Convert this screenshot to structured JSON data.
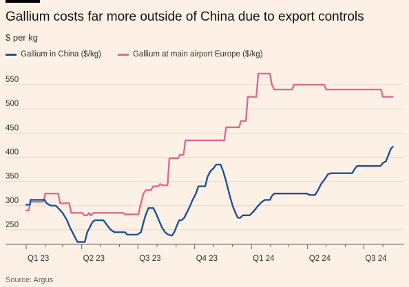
{
  "header": {
    "title": "Gallium costs far more outside of China due to export controls",
    "subtitle": "$ per kg"
  },
  "legend": [
    {
      "label": "Gallium in China ($/kg)",
      "color": "#1f4e96"
    },
    {
      "label": "Gallium at main airport Europe ($/kg)",
      "color": "#e0698a"
    }
  ],
  "footer": {
    "source": "Source: Argus"
  },
  "chart_data": {
    "type": "line",
    "title": "Gallium costs far more outside of China due to export controls",
    "ylabel": "$ per kg",
    "xlabel": "",
    "x_tick_labels": [
      "Q1 23",
      "Q2 23",
      "Q3 23",
      "Q4 23",
      "Q1 24",
      "Q2 24",
      "Q3 24"
    ],
    "y_ticks": [
      250,
      300,
      350,
      400,
      450,
      500,
      550
    ],
    "xlim": [
      "2023-01-01",
      "2024-08-31"
    ],
    "ylim": [
      220,
      590
    ],
    "grid": true,
    "legend_position": "top-left",
    "series": [
      {
        "name": "Gallium in China ($/kg)",
        "color": "#1f4e96",
        "points": [
          [
            "2023-01-01",
            302
          ],
          [
            "2023-01-07",
            302
          ],
          [
            "2023-01-08",
            312
          ],
          [
            "2023-01-31",
            312
          ],
          [
            "2023-02-03",
            305
          ],
          [
            "2023-02-10",
            300
          ],
          [
            "2023-02-18",
            300
          ],
          [
            "2023-02-22",
            295
          ],
          [
            "2023-03-01",
            285
          ],
          [
            "2023-03-08",
            270
          ],
          [
            "2023-03-13",
            255
          ],
          [
            "2023-03-19",
            240
          ],
          [
            "2023-03-25",
            225
          ],
          [
            "2023-04-06",
            225
          ],
          [
            "2023-04-10",
            245
          ],
          [
            "2023-04-14",
            255
          ],
          [
            "2023-04-18",
            265
          ],
          [
            "2023-04-22",
            270
          ],
          [
            "2023-05-06",
            270
          ],
          [
            "2023-05-12",
            260
          ],
          [
            "2023-05-18",
            250
          ],
          [
            "2023-05-24",
            245
          ],
          [
            "2023-06-10",
            245
          ],
          [
            "2023-06-14",
            240
          ],
          [
            "2023-06-30",
            240
          ],
          [
            "2023-07-06",
            245
          ],
          [
            "2023-07-10",
            265
          ],
          [
            "2023-07-14",
            282
          ],
          [
            "2023-07-18",
            295
          ],
          [
            "2023-07-26",
            295
          ],
          [
            "2023-07-30",
            285
          ],
          [
            "2023-08-04",
            270
          ],
          [
            "2023-08-09",
            255
          ],
          [
            "2023-08-14",
            245
          ],
          [
            "2023-08-19",
            240
          ],
          [
            "2023-08-25",
            238
          ],
          [
            "2023-08-29",
            245
          ],
          [
            "2023-09-02",
            258
          ],
          [
            "2023-09-06",
            270
          ],
          [
            "2023-09-10",
            270
          ],
          [
            "2023-09-14",
            275
          ],
          [
            "2023-09-18",
            285
          ],
          [
            "2023-09-22",
            295
          ],
          [
            "2023-09-27",
            310
          ],
          [
            "2023-10-03",
            325
          ],
          [
            "2023-10-07",
            340
          ],
          [
            "2023-10-18",
            340
          ],
          [
            "2023-10-22",
            360
          ],
          [
            "2023-10-27",
            372
          ],
          [
            "2023-11-01",
            378
          ],
          [
            "2023-11-05",
            385
          ],
          [
            "2023-11-12",
            385
          ],
          [
            "2023-11-16",
            372
          ],
          [
            "2023-11-20",
            355
          ],
          [
            "2023-11-24",
            335
          ],
          [
            "2023-11-28",
            315
          ],
          [
            "2023-12-02",
            298
          ],
          [
            "2023-12-06",
            285
          ],
          [
            "2023-12-10",
            275
          ],
          [
            "2023-12-14",
            275
          ],
          [
            "2023-12-18",
            280
          ],
          [
            "2023-12-29",
            280
          ],
          [
            "2024-01-02",
            285
          ],
          [
            "2024-01-07",
            292
          ],
          [
            "2024-01-12",
            300
          ],
          [
            "2024-01-17",
            307
          ],
          [
            "2024-01-23",
            312
          ],
          [
            "2024-01-31",
            312
          ],
          [
            "2024-02-03",
            320
          ],
          [
            "2024-02-07",
            325
          ],
          [
            "2024-03-31",
            325
          ],
          [
            "2024-04-04",
            322
          ],
          [
            "2024-04-13",
            322
          ],
          [
            "2024-04-17",
            330
          ],
          [
            "2024-04-23",
            345
          ],
          [
            "2024-04-29",
            355
          ],
          [
            "2024-05-04",
            365
          ],
          [
            "2024-05-09",
            367
          ],
          [
            "2024-06-12",
            367
          ],
          [
            "2024-06-16",
            375
          ],
          [
            "2024-06-20",
            382
          ],
          [
            "2024-07-28",
            382
          ],
          [
            "2024-08-01",
            388
          ],
          [
            "2024-08-06",
            392
          ],
          [
            "2024-08-10",
            405
          ],
          [
            "2024-08-14",
            418
          ],
          [
            "2024-08-17",
            422
          ]
        ]
      },
      {
        "name": "Gallium at main airport Europe ($/kg)",
        "color": "#e0698a",
        "points": [
          [
            "2023-01-01",
            290
          ],
          [
            "2023-01-05",
            290
          ],
          [
            "2023-01-08",
            308
          ],
          [
            "2023-01-29",
            308
          ],
          [
            "2023-02-01",
            325
          ],
          [
            "2023-02-22",
            325
          ],
          [
            "2023-02-25",
            305
          ],
          [
            "2023-03-12",
            305
          ],
          [
            "2023-03-15",
            285
          ],
          [
            "2023-04-02",
            285
          ],
          [
            "2023-04-05",
            280
          ],
          [
            "2023-04-10",
            280
          ],
          [
            "2023-04-13",
            285
          ],
          [
            "2023-04-16",
            280
          ],
          [
            "2023-04-20",
            285
          ],
          [
            "2023-06-07",
            285
          ],
          [
            "2023-06-10",
            282
          ],
          [
            "2023-07-02",
            282
          ],
          [
            "2023-07-05",
            300
          ],
          [
            "2023-07-10",
            325
          ],
          [
            "2023-07-14",
            332
          ],
          [
            "2023-07-22",
            332
          ],
          [
            "2023-07-26",
            340
          ],
          [
            "2023-08-03",
            340
          ],
          [
            "2023-08-06",
            345
          ],
          [
            "2023-08-10",
            342
          ],
          [
            "2023-08-18",
            342
          ],
          [
            "2023-08-21",
            398
          ],
          [
            "2023-09-04",
            398
          ],
          [
            "2023-09-07",
            405
          ],
          [
            "2023-09-13",
            405
          ],
          [
            "2023-09-16",
            435
          ],
          [
            "2023-11-18",
            435
          ],
          [
            "2023-11-21",
            462
          ],
          [
            "2023-12-12",
            462
          ],
          [
            "2023-12-15",
            475
          ],
          [
            "2023-12-23",
            475
          ],
          [
            "2023-12-26",
            525
          ],
          [
            "2024-01-09",
            525
          ],
          [
            "2024-01-12",
            573
          ],
          [
            "2024-01-31",
            573
          ],
          [
            "2024-02-03",
            550
          ],
          [
            "2024-02-07",
            540
          ],
          [
            "2024-03-07",
            540
          ],
          [
            "2024-03-10",
            550
          ],
          [
            "2024-04-28",
            550
          ],
          [
            "2024-05-01",
            540
          ],
          [
            "2024-07-29",
            540
          ],
          [
            "2024-08-01",
            525
          ],
          [
            "2024-08-17",
            525
          ]
        ]
      }
    ]
  }
}
